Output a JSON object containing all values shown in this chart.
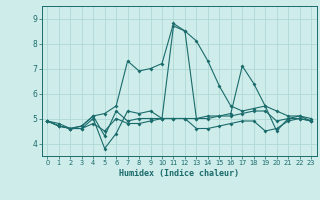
{
  "xlabel": "Humidex (Indice chaleur)",
  "bg_color": "#ceecea",
  "grid_color": "#b0d8d5",
  "line_color": "#1a6b6b",
  "xlim": [
    -0.5,
    23.5
  ],
  "ylim": [
    3.5,
    9.5
  ],
  "yticks": [
    4,
    5,
    6,
    7,
    8,
    9
  ],
  "xticks": [
    0,
    1,
    2,
    3,
    4,
    5,
    6,
    7,
    8,
    9,
    10,
    11,
    12,
    13,
    14,
    15,
    16,
    17,
    18,
    19,
    20,
    21,
    22,
    23
  ],
  "lines": [
    {
      "x": [
        0,
        1,
        2,
        3,
        4,
        5,
        6,
        7,
        8,
        9,
        10,
        11,
        12,
        13,
        14,
        15,
        16,
        17,
        18,
        19,
        20,
        21,
        22,
        23
      ],
      "y": [
        4.9,
        4.7,
        4.6,
        4.7,
        5.1,
        5.2,
        5.5,
        7.3,
        6.9,
        7.0,
        7.2,
        8.8,
        8.5,
        8.1,
        7.3,
        6.3,
        5.5,
        5.3,
        5.4,
        5.5,
        5.3,
        5.1,
        5.1,
        5.0
      ]
    },
    {
      "x": [
        0,
        1,
        2,
        3,
        4,
        5,
        6,
        7,
        8,
        9,
        10,
        11,
        12,
        13,
        14,
        15,
        16,
        17,
        18,
        19,
        20,
        21,
        22,
        23
      ],
      "y": [
        4.9,
        4.7,
        4.6,
        4.6,
        5.0,
        3.8,
        4.4,
        5.3,
        5.2,
        5.3,
        5.0,
        8.7,
        8.5,
        5.0,
        5.1,
        5.1,
        5.2,
        7.1,
        6.4,
        5.5,
        4.5,
        5.0,
        5.1,
        4.9
      ]
    },
    {
      "x": [
        0,
        1,
        2,
        3,
        4,
        5,
        6,
        7,
        8,
        9,
        10,
        11,
        12,
        13,
        14,
        15,
        16,
        17,
        18,
        19,
        20,
        21,
        22,
        23
      ],
      "y": [
        4.9,
        4.8,
        4.6,
        4.7,
        5.1,
        4.3,
        5.3,
        4.9,
        5.0,
        5.0,
        5.0,
        5.0,
        5.0,
        5.0,
        5.0,
        5.1,
        5.1,
        5.2,
        5.3,
        5.3,
        4.9,
        5.0,
        5.0,
        4.9
      ]
    },
    {
      "x": [
        0,
        1,
        2,
        3,
        4,
        5,
        6,
        7,
        8,
        9,
        10,
        11,
        12,
        13,
        14,
        15,
        16,
        17,
        18,
        19,
        20,
        21,
        22,
        23
      ],
      "y": [
        4.9,
        4.7,
        4.6,
        4.6,
        4.8,
        4.5,
        5.0,
        4.8,
        4.8,
        4.9,
        5.0,
        5.0,
        5.0,
        4.6,
        4.6,
        4.7,
        4.8,
        4.9,
        4.9,
        4.5,
        4.6,
        4.9,
        5.0,
        4.9
      ]
    }
  ]
}
